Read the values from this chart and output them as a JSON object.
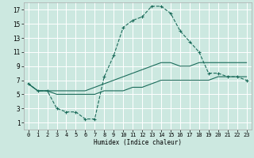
{
  "xlabel": "Humidex (Indice chaleur)",
  "bg_color": "#cce8e0",
  "grid_color": "#ffffff",
  "line_color": "#1a6b5a",
  "xlim": [
    -0.5,
    23.5
  ],
  "ylim": [
    0,
    18
  ],
  "xticks": [
    0,
    1,
    2,
    3,
    4,
    5,
    6,
    7,
    8,
    9,
    10,
    11,
    12,
    13,
    14,
    15,
    16,
    17,
    18,
    19,
    20,
    21,
    22,
    23
  ],
  "yticks": [
    1,
    3,
    5,
    7,
    9,
    11,
    13,
    15,
    17
  ],
  "series1_x": [
    0,
    1,
    2,
    3,
    4,
    5,
    6,
    7,
    8,
    9,
    10,
    11,
    12,
    13,
    14,
    15,
    16,
    17,
    18,
    19,
    20,
    21,
    22,
    23
  ],
  "series1_y": [
    6.5,
    5.5,
    5.5,
    3.0,
    2.5,
    2.5,
    1.5,
    1.5,
    7.5,
    10.5,
    14.5,
    15.5,
    16.0,
    17.5,
    17.5,
    16.5,
    14.0,
    12.5,
    11.0,
    8.0,
    8.0,
    7.5,
    7.5,
    7.0
  ],
  "series2_x": [
    0,
    1,
    2,
    3,
    4,
    5,
    6,
    7,
    8,
    9,
    10,
    11,
    12,
    13,
    14,
    15,
    16,
    17,
    18,
    19,
    20,
    21,
    22,
    23
  ],
  "series2_y": [
    6.5,
    5.5,
    5.5,
    5.5,
    5.5,
    5.5,
    5.5,
    6.0,
    6.5,
    7.0,
    7.5,
    8.0,
    8.5,
    9.0,
    9.5,
    9.5,
    9.0,
    9.0,
    9.5,
    9.5,
    9.5,
    9.5,
    9.5,
    9.5
  ],
  "series3_x": [
    0,
    1,
    2,
    3,
    4,
    5,
    6,
    7,
    8,
    9,
    10,
    11,
    12,
    13,
    14,
    15,
    16,
    17,
    18,
    19,
    20,
    21,
    22,
    23
  ],
  "series3_y": [
    6.5,
    5.5,
    5.5,
    5.0,
    5.0,
    5.0,
    5.0,
    5.0,
    5.5,
    5.5,
    5.5,
    6.0,
    6.0,
    6.5,
    7.0,
    7.0,
    7.0,
    7.0,
    7.0,
    7.0,
    7.5,
    7.5,
    7.5,
    7.5
  ]
}
